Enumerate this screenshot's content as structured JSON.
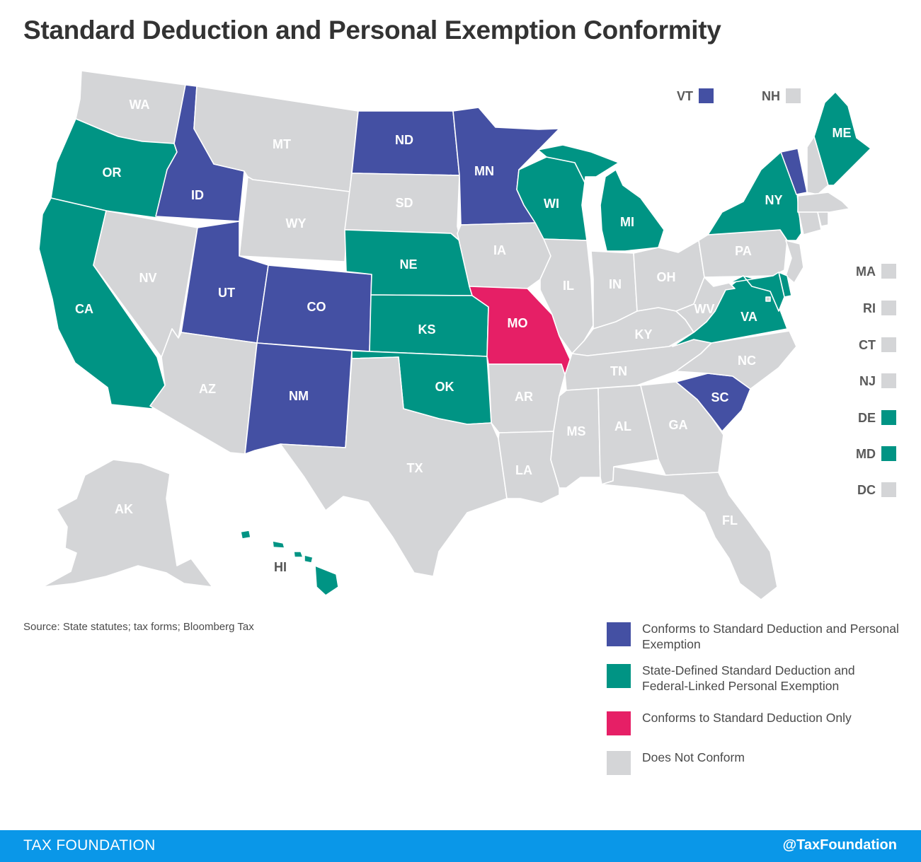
{
  "title": "Standard Deduction and Personal Exemption Conformity",
  "source": "Source:  State statutes; tax forms; Bloomberg Tax",
  "footer": {
    "left": "TAX FOUNDATION",
    "right": "@TaxFoundation"
  },
  "colors": {
    "conforms_both": "#4450a3",
    "state_defined": "#009484",
    "standard_only": "#e61f66",
    "does_not_conform": "#d4d5d7"
  },
  "legend": [
    {
      "category": "conforms_both",
      "label": "Conforms to Standard Deduction and Personal Exemption"
    },
    {
      "category": "state_defined",
      "label": "State-Defined Standard Deduction and Federal-Linked Personal Exemption"
    },
    {
      "category": "standard_only",
      "label": "Conforms to Standard Deduction Only"
    },
    {
      "category": "does_not_conform",
      "label": "Does Not Conform"
    }
  ],
  "states": {
    "WA": "does_not_conform",
    "OR": "state_defined",
    "CA": "state_defined",
    "ID": "conforms_both",
    "NV": "does_not_conform",
    "MT": "does_not_conform",
    "WY": "does_not_conform",
    "UT": "conforms_both",
    "AZ": "does_not_conform",
    "CO": "conforms_both",
    "NM": "conforms_both",
    "ND": "conforms_both",
    "SD": "does_not_conform",
    "NE": "state_defined",
    "KS": "state_defined",
    "OK": "state_defined",
    "TX": "does_not_conform",
    "MN": "conforms_both",
    "IA": "does_not_conform",
    "MO": "standard_only",
    "AR": "does_not_conform",
    "LA": "does_not_conform",
    "WI": "state_defined",
    "IL": "does_not_conform",
    "MI": "state_defined",
    "IN": "does_not_conform",
    "OH": "does_not_conform",
    "KY": "does_not_conform",
    "TN": "does_not_conform",
    "MS": "does_not_conform",
    "AL": "does_not_conform",
    "GA": "does_not_conform",
    "FL": "does_not_conform",
    "SC": "conforms_both",
    "NC": "does_not_conform",
    "VA": "state_defined",
    "WV": "does_not_conform",
    "PA": "does_not_conform",
    "NY": "state_defined",
    "VT": "conforms_both",
    "NH": "does_not_conform",
    "ME": "state_defined",
    "MA": "does_not_conform",
    "RI": "does_not_conform",
    "CT": "does_not_conform",
    "NJ": "does_not_conform",
    "DE": "state_defined",
    "MD": "state_defined",
    "DC": "does_not_conform",
    "AK": "does_not_conform",
    "HI": "state_defined"
  }
}
